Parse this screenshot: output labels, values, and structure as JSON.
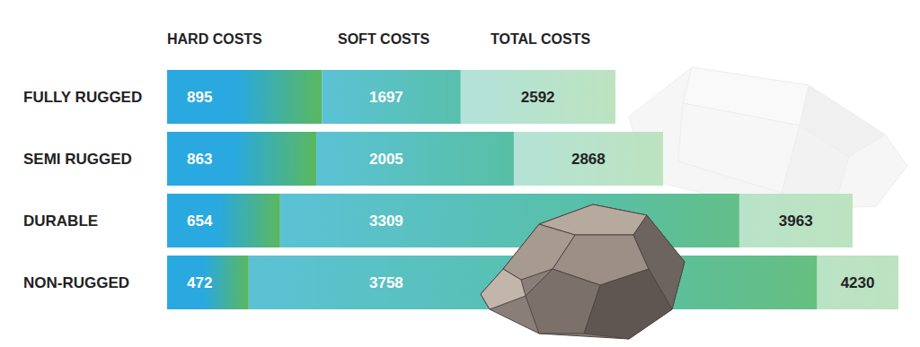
{
  "chart_data": {
    "type": "bar",
    "orientation": "horizontal",
    "stacked": true,
    "data_labels": true,
    "tick_labels": false,
    "grid": false,
    "categories": [
      "FULLY RUGGED",
      "SEMI RUGGED",
      "DURABLE",
      "NON-RUGGED"
    ],
    "series": [
      {
        "name": "HARD COSTS",
        "color": "#29a9e0",
        "values": [
          895,
          863,
          654,
          472
        ]
      },
      {
        "name": "SOFT COSTS",
        "color": "#5bc2d6",
        "values": [
          1697,
          2005,
          3309,
          3758
        ]
      }
    ],
    "totals": {
      "name": "TOTAL COSTS",
      "values": [
        2592,
        2868,
        3963,
        4230
      ]
    },
    "xlim": [
      0,
      4230
    ]
  }
}
